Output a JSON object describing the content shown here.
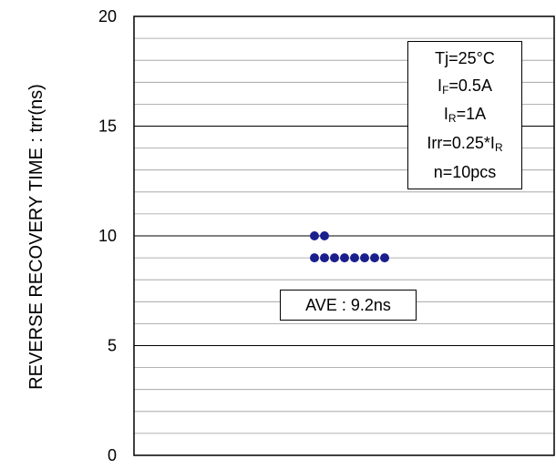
{
  "chart_data": {
    "type": "scatter",
    "title": "",
    "xlabel": "",
    "ylabel": "REVERSE RECOVERY TIME : trr(ns)",
    "ylim": [
      0,
      20
    ],
    "yticks": [
      0,
      5,
      10,
      15,
      20
    ],
    "minor_grid_step": 1,
    "grid": true,
    "point_color": "#1a1f8c",
    "points": [
      {
        "rank": 1,
        "value": 10.0
      },
      {
        "rank": 2,
        "value": 10.0
      },
      {
        "rank": 1,
        "value": 9.0
      },
      {
        "rank": 2,
        "value": 9.0
      },
      {
        "rank": 3,
        "value": 9.0
      },
      {
        "rank": 4,
        "value": 9.0
      },
      {
        "rank": 5,
        "value": 9.0
      },
      {
        "rank": 6,
        "value": 9.0
      },
      {
        "rank": 7,
        "value": 9.0
      },
      {
        "rank": 8,
        "value": 9.0
      }
    ],
    "conditions": {
      "tj": "Tj=25°C",
      "if_main": "I",
      "if_sub": "F",
      "if_rest": "=0.5A",
      "ir_main": "I",
      "ir_sub": "R",
      "ir_rest": "=1A",
      "irr_main": "Irr=0.25*I",
      "irr_sub": "R",
      "n": "n=10pcs"
    },
    "average_label": "AVE : 9.2ns"
  }
}
